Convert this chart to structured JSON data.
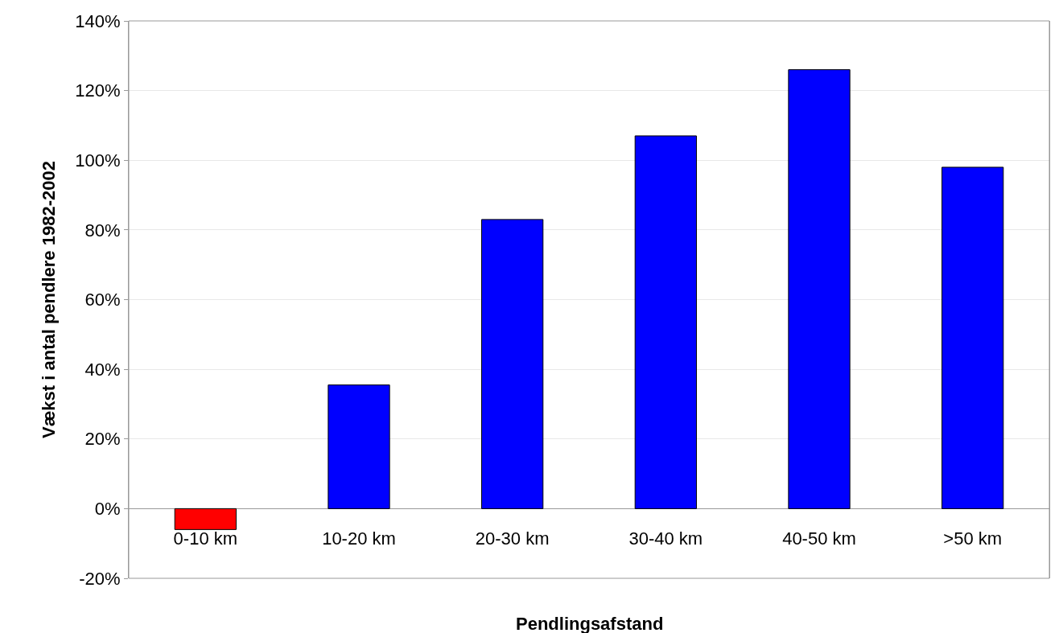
{
  "chart_data": {
    "type": "bar",
    "xlabel": "Pendlingsafstand",
    "ylabel": "Vækst i antal pendlere 1982-2002",
    "categories": [
      "0-10 km",
      "10-20 km",
      "20-30 km",
      "30-40 km",
      "40-50 km",
      ">50 km"
    ],
    "values": [
      -6,
      35.5,
      83,
      107,
      126,
      98
    ],
    "colors": [
      "#ff0000",
      "#0000ff",
      "#0000ff",
      "#0000ff",
      "#0000ff",
      "#0000ff"
    ],
    "ylim": [
      -20,
      140
    ],
    "yticks": [
      {
        "value": -20,
        "label": "-20%"
      },
      {
        "value": 0,
        "label": "0%"
      },
      {
        "value": 20,
        "label": "20%"
      },
      {
        "value": 40,
        "label": "40%"
      },
      {
        "value": 60,
        "label": "60%"
      },
      {
        "value": 80,
        "label": "80%"
      },
      {
        "value": 100,
        "label": "100%"
      },
      {
        "value": 120,
        "label": "120%"
      },
      {
        "value": 140,
        "label": "140%"
      }
    ],
    "grid": "y"
  }
}
